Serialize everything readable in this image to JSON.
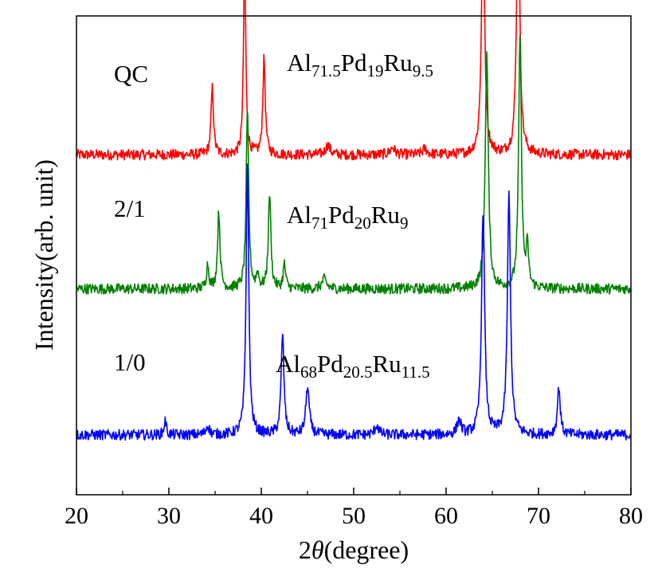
{
  "chart_data": {
    "type": "line",
    "xlabel_prefix": "2",
    "xlabel_theta": "θ",
    "xlabel_unit": "(degree)",
    "ylabel": "Intensity(arb. unit)",
    "xlim": [
      20,
      80
    ],
    "xticks": [
      "20",
      "30",
      "40",
      "50",
      "60",
      "70",
      "80"
    ],
    "grid": false,
    "series": [
      {
        "key": "qc",
        "panel_label": "QC",
        "composition": [
          {
            "t": "Al",
            "sub": "71.5"
          },
          {
            "t": "Pd",
            "sub": "19"
          },
          {
            "t": "Ru",
            "sub": "9.5"
          }
        ],
        "color": "#ff0000",
        "baseline": 0.71,
        "noise": 0.011,
        "peaks": [
          {
            "x": 34.7,
            "h": 0.14,
            "w": 0.16
          },
          {
            "x": 38.2,
            "h": 0.42,
            "w": 0.14
          },
          {
            "x": 40.3,
            "h": 0.2,
            "w": 0.16
          },
          {
            "x": 47.2,
            "h": 0.02,
            "w": 0.3
          },
          {
            "x": 54.2,
            "h": 0.015,
            "w": 0.3
          },
          {
            "x": 57.7,
            "h": 0.012,
            "w": 0.3
          },
          {
            "x": 64.0,
            "h": 0.52,
            "w": 0.2
          },
          {
            "x": 67.8,
            "h": 0.56,
            "w": 0.2
          }
        ]
      },
      {
        "key": "2-1",
        "panel_label": "2/1",
        "composition": [
          {
            "t": "Al",
            "sub": "71"
          },
          {
            "t": "Pd",
            "sub": "20"
          },
          {
            "t": "Ru",
            "sub": "9"
          }
        ],
        "color": "#008000",
        "baseline": 0.43,
        "noise": 0.011,
        "peaks": [
          {
            "x": 34.2,
            "h": 0.05,
            "w": 0.16
          },
          {
            "x": 35.4,
            "h": 0.16,
            "w": 0.16
          },
          {
            "x": 38.5,
            "h": 0.37,
            "w": 0.16
          },
          {
            "x": 39.6,
            "h": 0.03,
            "w": 0.15
          },
          {
            "x": 40.9,
            "h": 0.2,
            "w": 0.16
          },
          {
            "x": 42.5,
            "h": 0.05,
            "w": 0.16
          },
          {
            "x": 46.8,
            "h": 0.02,
            "w": 0.3
          },
          {
            "x": 64.4,
            "h": 0.49,
            "w": 0.2
          },
          {
            "x": 68.0,
            "h": 0.53,
            "w": 0.18
          },
          {
            "x": 68.8,
            "h": 0.08,
            "w": 0.15
          }
        ]
      },
      {
        "key": "1-0",
        "panel_label": "1/0",
        "composition": [
          {
            "t": "Al",
            "sub": "68"
          },
          {
            "t": "Pd",
            "sub": "20.5"
          },
          {
            "t": "Ru",
            "sub": "11.5"
          }
        ],
        "color": "#0000ff",
        "baseline": 0.125,
        "noise": 0.011,
        "peaks": [
          {
            "x": 29.6,
            "h": 0.03,
            "w": 0.15
          },
          {
            "x": 34.2,
            "h": 0.02,
            "w": 0.2
          },
          {
            "x": 38.5,
            "h": 0.57,
            "w": 0.17
          },
          {
            "x": 42.3,
            "h": 0.21,
            "w": 0.18
          },
          {
            "x": 45.0,
            "h": 0.1,
            "w": 0.22
          },
          {
            "x": 52.5,
            "h": 0.02,
            "w": 0.25
          },
          {
            "x": 61.4,
            "h": 0.03,
            "w": 0.25
          },
          {
            "x": 64.0,
            "h": 0.47,
            "w": 0.2
          },
          {
            "x": 66.8,
            "h": 0.5,
            "w": 0.2
          },
          {
            "x": 72.2,
            "h": 0.1,
            "w": 0.18
          }
        ]
      }
    ]
  }
}
